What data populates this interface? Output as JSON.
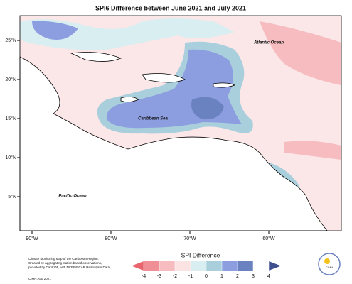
{
  "map": {
    "title": "SPI6 Difference between June 2021 and July 2021",
    "labels": {
      "atlantic": "Atlantic Ocean",
      "caribbean": "Caribbean Sea",
      "pacific": "Pacific Ocean"
    },
    "lon_ticks": [
      "90°W",
      "80°W",
      "70°W",
      "60°W"
    ],
    "lat_ticks": [
      "25°N",
      "20°N",
      "15°N",
      "10°N",
      "5°N"
    ],
    "colorbar": {
      "label": "SPI Difference",
      "ticks": [
        -4,
        -3,
        -2,
        -1,
        0,
        1,
        2,
        3,
        4
      ],
      "colors": [
        "#e8656d",
        "#f08f96",
        "#f6bcc0",
        "#fbe2e3",
        "#d9eef0",
        "#a9cfdc",
        "#8c9de0",
        "#6a82c0",
        "#3f4f8f"
      ]
    },
    "footnote": [
      "Climate Monitoring Map of the Caribbean Region.",
      "Created by aggregating station based observations,",
      "provided by CariCOF, with NCEP/NCAR Reanalysis Data."
    ],
    "credit": "CIMH Aug 2021",
    "logo": "CIMH"
  }
}
